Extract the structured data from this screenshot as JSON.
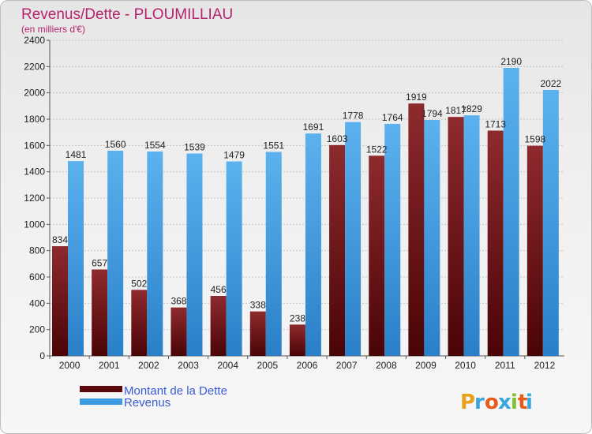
{
  "chart_data": {
    "type": "bar",
    "title": "Revenus/Dette - PLOUMILLIAU",
    "subtitle": "(en milliers d'€)",
    "categories": [
      "2000",
      "2001",
      "2002",
      "2003",
      "2004",
      "2005",
      "2006",
      "2007",
      "2008",
      "2009",
      "2010",
      "2011",
      "2012"
    ],
    "series": [
      {
        "name": "Montant de la Dette",
        "color": "#6b0f12",
        "values": [
          834,
          657,
          502,
          368,
          456,
          338,
          238,
          1603,
          1522,
          1919,
          1817,
          1713,
          1598
        ]
      },
      {
        "name": "Revenus",
        "color": "#3c9ce0",
        "values": [
          1481,
          1560,
          1554,
          1539,
          1479,
          1551,
          1691,
          1778,
          1764,
          1794,
          1829,
          2190,
          2022
        ]
      }
    ],
    "yticks": [
      0,
      200,
      400,
      600,
      800,
      1000,
      1200,
      1400,
      1600,
      1800,
      2000,
      2200,
      2400
    ],
    "ylim": [
      0,
      2400
    ],
    "grid": true,
    "legend_position": "bottom-left"
  },
  "branding": {
    "logo_letters": [
      "P",
      "r",
      "o",
      "x",
      "i",
      "t",
      "i"
    ],
    "logo_colors": [
      "#e8a21a",
      "#3aa6dd",
      "#e85a1a",
      "#3aa6dd",
      "#7cc12e",
      "#e85a1a",
      "#3aa6dd"
    ]
  }
}
